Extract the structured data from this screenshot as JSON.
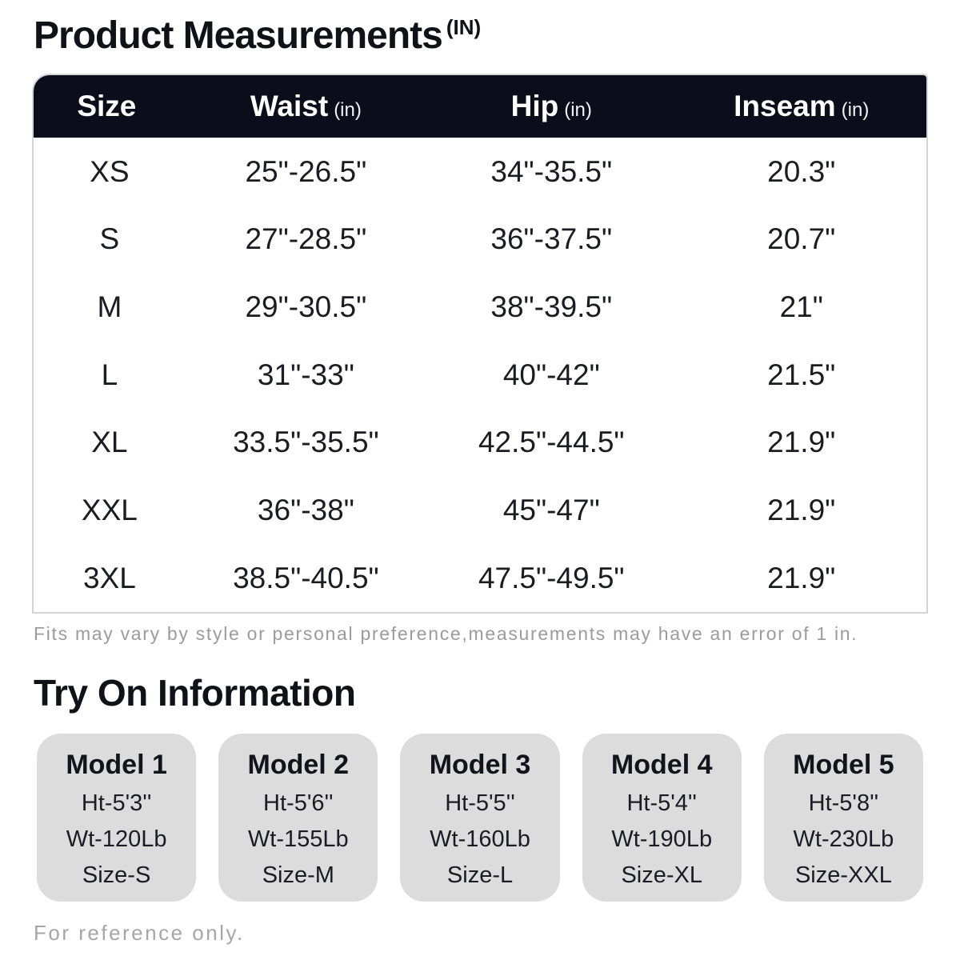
{
  "title": {
    "text": "Product Measurements",
    "unit": "(IN)"
  },
  "table": {
    "columns": [
      {
        "label": "Size",
        "unit": ""
      },
      {
        "label": "Waist",
        "unit": "(in)"
      },
      {
        "label": "Hip",
        "unit": "(in)"
      },
      {
        "label": "Inseam",
        "unit": "(in)"
      }
    ],
    "rows": [
      {
        "size": "XS",
        "waist": "25\"-26.5\"",
        "hip": "34\"-35.5\"",
        "inseam": "20.3\""
      },
      {
        "size": "S",
        "waist": "27\"-28.5\"",
        "hip": "36\"-37.5\"",
        "inseam": "20.7\""
      },
      {
        "size": "M",
        "waist": "29\"-30.5\"",
        "hip": "38\"-39.5\"",
        "inseam": "21\""
      },
      {
        "size": "L",
        "waist": "31\"-33\"",
        "hip": "40\"-42\"",
        "inseam": "21.5\""
      },
      {
        "size": "XL",
        "waist": "33.5\"-35.5\"",
        "hip": "42.5\"-44.5\"",
        "inseam": "21.9\""
      },
      {
        "size": "XXL",
        "waist": "36\"-38\"",
        "hip": "45\"-47\"",
        "inseam": "21.9\""
      },
      {
        "size": "3XL",
        "waist": "38.5\"-40.5\"",
        "hip": "47.5\"-49.5\"",
        "inseam": "21.9\""
      }
    ],
    "note": "Fits may vary by style or personal preference,measurements may have an error of 1 in."
  },
  "try_on": {
    "heading": "Try On Information",
    "models": [
      {
        "name": "Model 1",
        "height": "Ht-5'3''",
        "weight": "Wt-120Lb",
        "size": "Size-S"
      },
      {
        "name": "Model 2",
        "height": "Ht-5'6''",
        "weight": "Wt-155Lb",
        "size": "Size-M"
      },
      {
        "name": "Model 3",
        "height": "Ht-5'5''",
        "weight": "Wt-160Lb",
        "size": "Size-L"
      },
      {
        "name": "Model 4",
        "height": "Ht-5'4''",
        "weight": "Wt-190Lb",
        "size": "Size-XL"
      },
      {
        "name": "Model 5",
        "height": "Ht-5'8''",
        "weight": "Wt-230Lb",
        "size": "Size-XXL"
      }
    ],
    "note": "For reference only."
  },
  "colors": {
    "header_bg": "#0c0d1a",
    "header_text": "#ffffff",
    "body_text": "#1b1c21",
    "table_border": "#d4d4d9",
    "note_gray": "#9b9b9b",
    "ref_note_gray": "#a6a6a6",
    "card_bg": "#dcdcdd"
  },
  "chart_data": {
    "type": "table",
    "title": "Product Measurements (IN)",
    "columns": [
      "Size",
      "Waist (in)",
      "Hip (in)",
      "Inseam (in)"
    ],
    "rows": [
      [
        "XS",
        "25\"-26.5\"",
        "34\"-35.5\"",
        "20.3\""
      ],
      [
        "S",
        "27\"-28.5\"",
        "36\"-37.5\"",
        "20.7\""
      ],
      [
        "M",
        "29\"-30.5\"",
        "38\"-39.5\"",
        "21\""
      ],
      [
        "L",
        "31\"-33\"",
        "40\"-42\"",
        "21.5\""
      ],
      [
        "XL",
        "33.5\"-35.5\"",
        "42.5\"-44.5\"",
        "21.9\""
      ],
      [
        "XXL",
        "36\"-38\"",
        "45\"-47\"",
        "21.9\""
      ],
      [
        "3XL",
        "38.5\"-40.5\"",
        "47.5\"-49.5\"",
        "21.9\""
      ]
    ]
  }
}
